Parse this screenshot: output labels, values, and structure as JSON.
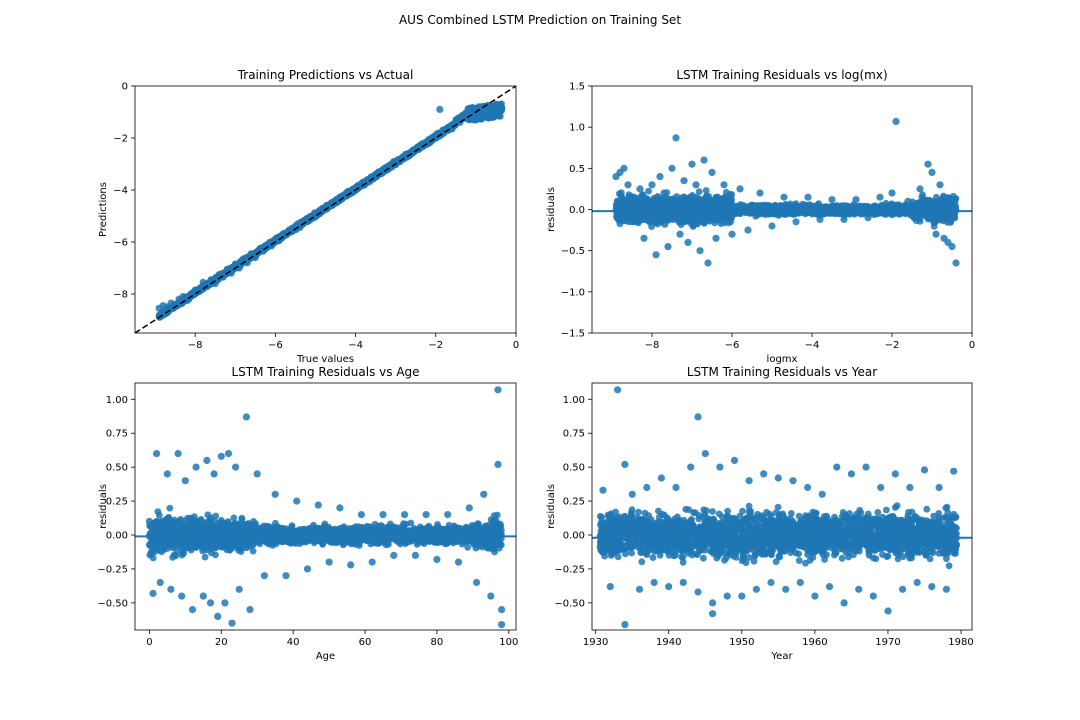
{
  "figure_title": "AUS Combined LSTM Prediction on Training Set",
  "colors": {
    "points": "#1f77b4",
    "hline": "#1f77b4",
    "diagonal": "#000000"
  },
  "chart_data": [
    {
      "id": "pred-vs-actual",
      "type": "scatter",
      "title": "Training Predictions vs Actual",
      "xlabel": "True values",
      "ylabel": "Predictions",
      "xlim": [
        -9.5,
        0
      ],
      "ylim": [
        -9.5,
        0
      ],
      "xticks": [
        -8,
        -6,
        -4,
        -2,
        0
      ],
      "yticks": [
        -8,
        -6,
        -4,
        -2,
        0
      ],
      "tick_labels_x": [
        "−8",
        "−6",
        "−4",
        "−2",
        "0"
      ],
      "tick_labels_y": [
        "−8",
        "−6",
        "−4",
        "−2",
        "0"
      ],
      "reference_line": "y = x (dashed, black)",
      "points": [
        [
          -8.9,
          -8.55
        ],
        [
          -8.8,
          -8.45
        ],
        [
          -8.7,
          -8.5
        ],
        [
          -8.6,
          -8.35
        ],
        [
          -8.5,
          -8.4
        ],
        [
          -8.4,
          -8.2
        ],
        [
          -8.3,
          -8.1
        ],
        [
          -8.2,
          -8.25
        ],
        [
          -8.1,
          -8.0
        ],
        [
          -8.0,
          -7.85
        ],
        [
          -7.9,
          -7.9
        ],
        [
          -7.8,
          -7.55
        ],
        [
          -7.7,
          -7.7
        ],
        [
          -7.6,
          -7.45
        ],
        [
          -7.5,
          -7.6
        ],
        [
          -7.4,
          -7.25
        ],
        [
          -7.3,
          -7.35
        ],
        [
          -7.2,
          -7.05
        ],
        [
          -7.1,
          -7.2
        ],
        [
          -7.0,
          -6.85
        ],
        [
          -6.9,
          -7.0
        ],
        [
          -6.8,
          -6.65
        ],
        [
          -6.7,
          -6.8
        ],
        [
          -6.6,
          -6.45
        ],
        [
          -6.5,
          -6.6
        ],
        [
          -6.4,
          -6.3
        ],
        [
          -6.3,
          -6.35
        ],
        [
          -6.2,
          -6.1
        ],
        [
          -6.1,
          -6.15
        ],
        [
          -6.0,
          -5.95
        ],
        [
          -5.8,
          -5.75
        ],
        [
          -5.6,
          -5.5
        ],
        [
          -5.4,
          -5.35
        ],
        [
          -5.2,
          -5.1
        ],
        [
          -5.0,
          -4.95
        ],
        [
          -4.8,
          -4.75
        ],
        [
          -4.6,
          -4.55
        ],
        [
          -4.4,
          -4.35
        ],
        [
          -4.2,
          -4.15
        ],
        [
          -4.0,
          -3.95
        ],
        [
          -3.8,
          -3.75
        ],
        [
          -3.6,
          -3.55
        ],
        [
          -3.4,
          -3.35
        ],
        [
          -3.2,
          -3.15
        ],
        [
          -3.0,
          -2.95
        ],
        [
          -2.8,
          -2.8
        ],
        [
          -2.6,
          -2.55
        ],
        [
          -2.4,
          -2.4
        ],
        [
          -2.2,
          -2.2
        ],
        [
          -2.0,
          -2.0
        ],
        [
          -1.9,
          -0.9
        ],
        [
          -1.8,
          -1.8
        ],
        [
          -1.6,
          -1.65
        ],
        [
          -1.4,
          -1.4
        ],
        [
          -1.3,
          -1.25
        ],
        [
          -1.2,
          -1.1
        ],
        [
          -1.1,
          -1.05
        ],
        [
          -1.0,
          -0.95
        ],
        [
          -0.9,
          -0.85
        ],
        [
          -0.8,
          -0.8
        ],
        [
          -0.7,
          -0.75
        ],
        [
          -0.6,
          -0.8
        ],
        [
          -0.5,
          -0.7
        ],
        [
          -0.4,
          -0.75
        ]
      ]
    },
    {
      "id": "resid-vs-logmx",
      "type": "scatter",
      "title": "LSTM Training Residuals vs log(mx)",
      "xlabel": "logmx",
      "ylabel": "residuals",
      "xlim": [
        -9.5,
        0
      ],
      "ylim": [
        -1.5,
        1.5
      ],
      "xticks": [
        -8,
        -6,
        -4,
        -2,
        0
      ],
      "yticks": [
        -1.5,
        -1.0,
        -0.5,
        0.0,
        0.5,
        1.0,
        1.5
      ],
      "tick_labels_x": [
        "−8",
        "−6",
        "−4",
        "−2",
        "0"
      ],
      "tick_labels_y": [
        "−1.5",
        "−1.0",
        "−0.5",
        "0.0",
        "0.5",
        "1.0",
        "1.5"
      ],
      "hline": -0.02,
      "points": [
        [
          -8.9,
          0.4
        ],
        [
          -8.8,
          0.45
        ],
        [
          -8.7,
          0.5
        ],
        [
          -8.6,
          0.3
        ],
        [
          -8.5,
          -0.15
        ],
        [
          -8.3,
          0.25
        ],
        [
          -8.2,
          -0.35
        ],
        [
          -8.0,
          0.3
        ],
        [
          -7.9,
          -0.55
        ],
        [
          -7.8,
          0.4
        ],
        [
          -7.7,
          0.2
        ],
        [
          -7.6,
          -0.45
        ],
        [
          -7.5,
          0.5
        ],
        [
          -7.4,
          0.87
        ],
        [
          -7.3,
          -0.3
        ],
        [
          -7.2,
          0.35
        ],
        [
          -7.1,
          -0.4
        ],
        [
          -7.0,
          0.55
        ],
        [
          -6.9,
          0.3
        ],
        [
          -6.8,
          -0.5
        ],
        [
          -6.7,
          0.6
        ],
        [
          -6.6,
          -0.65
        ],
        [
          -6.5,
          0.45
        ],
        [
          -6.4,
          -0.35
        ],
        [
          -6.2,
          0.3
        ],
        [
          -6.0,
          -0.3
        ],
        [
          -5.8,
          0.25
        ],
        [
          -5.6,
          -0.25
        ],
        [
          -5.3,
          0.2
        ],
        [
          -5.0,
          -0.2
        ],
        [
          -4.7,
          0.15
        ],
        [
          -4.4,
          -0.15
        ],
        [
          -4.1,
          0.15
        ],
        [
          -3.8,
          -0.12
        ],
        [
          -3.5,
          0.12
        ],
        [
          -3.2,
          -0.12
        ],
        [
          -2.9,
          0.12
        ],
        [
          -2.6,
          -0.1
        ],
        [
          -2.3,
          0.15
        ],
        [
          -2.0,
          0.2
        ],
        [
          -1.9,
          1.07
        ],
        [
          -1.6,
          0.1
        ],
        [
          -1.3,
          0.25
        ],
        [
          -1.1,
          0.55
        ],
        [
          -1.0,
          0.45
        ],
        [
          -0.9,
          -0.3
        ],
        [
          -0.8,
          0.3
        ],
        [
          -0.7,
          -0.35
        ],
        [
          -0.6,
          -0.4
        ],
        [
          -0.5,
          -0.45
        ],
        [
          -0.4,
          -0.65
        ]
      ]
    },
    {
      "id": "resid-vs-age",
      "type": "scatter",
      "title": "LSTM Training  Residuals vs Age",
      "xlabel": "Age",
      "ylabel": "residuals",
      "xlim": [
        -4,
        102
      ],
      "ylim": [
        -0.7,
        1.12
      ],
      "xticks": [
        0,
        20,
        40,
        60,
        80,
        100
      ],
      "yticks": [
        -0.5,
        -0.25,
        0.0,
        0.25,
        0.5,
        0.75,
        1.0
      ],
      "tick_labels_x": [
        "0",
        "20",
        "40",
        "60",
        "80",
        "100"
      ],
      "tick_labels_y": [
        "−0.50",
        "−0.25",
        "0.00",
        "0.25",
        "0.50",
        "0.75",
        "1.00"
      ],
      "hline": -0.01,
      "points": [
        [
          0,
          0.1
        ],
        [
          1,
          -0.43
        ],
        [
          2,
          0.6
        ],
        [
          3,
          -0.35
        ],
        [
          5,
          0.45
        ],
        [
          6,
          -0.4
        ],
        [
          8,
          0.6
        ],
        [
          9,
          -0.45
        ],
        [
          10,
          0.4
        ],
        [
          12,
          -0.55
        ],
        [
          13,
          0.5
        ],
        [
          15,
          -0.45
        ],
        [
          16,
          0.55
        ],
        [
          17,
          -0.5
        ],
        [
          18,
          0.45
        ],
        [
          19,
          -0.6
        ],
        [
          20,
          0.58
        ],
        [
          21,
          -0.5
        ],
        [
          22,
          0.6
        ],
        [
          23,
          -0.65
        ],
        [
          24,
          0.5
        ],
        [
          25,
          -0.4
        ],
        [
          27,
          0.87
        ],
        [
          28,
          -0.55
        ],
        [
          30,
          0.45
        ],
        [
          32,
          -0.3
        ],
        [
          35,
          0.3
        ],
        [
          38,
          -0.3
        ],
        [
          41,
          0.25
        ],
        [
          44,
          -0.25
        ],
        [
          47,
          0.22
        ],
        [
          50,
          -0.2
        ],
        [
          53,
          0.2
        ],
        [
          56,
          -0.22
        ],
        [
          59,
          0.15
        ],
        [
          62,
          -0.2
        ],
        [
          65,
          0.15
        ],
        [
          68,
          -0.15
        ],
        [
          71,
          0.15
        ],
        [
          74,
          -0.15
        ],
        [
          77,
          0.15
        ],
        [
          80,
          -0.18
        ],
        [
          83,
          0.15
        ],
        [
          86,
          -0.2
        ],
        [
          89,
          0.2
        ],
        [
          91,
          -0.35
        ],
        [
          93,
          0.3
        ],
        [
          95,
          -0.45
        ],
        [
          97,
          1.07
        ],
        [
          97,
          0.52
        ],
        [
          98,
          -0.55
        ],
        [
          98,
          -0.66
        ]
      ]
    },
    {
      "id": "resid-vs-year",
      "type": "scatter",
      "title": "LSTM Training  Residuals vs Year",
      "xlabel": "Year",
      "ylabel": "residuals",
      "xlim": [
        1929.5,
        1981.5
      ],
      "ylim": [
        -0.7,
        1.12
      ],
      "xticks": [
        1930,
        1940,
        1950,
        1960,
        1970,
        1980
      ],
      "yticks": [
        -0.5,
        -0.25,
        0.0,
        0.25,
        0.5,
        0.75,
        1.0
      ],
      "tick_labels_x": [
        "1930",
        "1940",
        "1950",
        "1960",
        "1970",
        "1980"
      ],
      "tick_labels_y": [
        "−0.50",
        "−0.25",
        "0.00",
        "0.25",
        "0.50",
        "0.75",
        "1.00"
      ],
      "hline": -0.02,
      "points": [
        [
          1931,
          0.33
        ],
        [
          1932,
          -0.38
        ],
        [
          1933,
          1.07
        ],
        [
          1934,
          0.52
        ],
        [
          1934,
          -0.66
        ],
        [
          1935,
          0.3
        ],
        [
          1936,
          -0.4
        ],
        [
          1937,
          0.35
        ],
        [
          1938,
          -0.35
        ],
        [
          1939,
          0.42
        ],
        [
          1940,
          -0.38
        ],
        [
          1941,
          0.35
        ],
        [
          1942,
          -0.35
        ],
        [
          1943,
          0.5
        ],
        [
          1944,
          0.87
        ],
        [
          1944,
          -0.42
        ],
        [
          1945,
          0.6
        ],
        [
          1946,
          -0.5
        ],
        [
          1946,
          -0.58
        ],
        [
          1947,
          0.5
        ],
        [
          1948,
          -0.45
        ],
        [
          1949,
          0.55
        ],
        [
          1950,
          -0.45
        ],
        [
          1951,
          0.4
        ],
        [
          1952,
          -0.4
        ],
        [
          1953,
          0.45
        ],
        [
          1954,
          -0.35
        ],
        [
          1955,
          0.42
        ],
        [
          1956,
          -0.4
        ],
        [
          1957,
          0.4
        ],
        [
          1958,
          -0.35
        ],
        [
          1959,
          0.35
        ],
        [
          1960,
          -0.45
        ],
        [
          1961,
          0.3
        ],
        [
          1962,
          -0.38
        ],
        [
          1963,
          0.5
        ],
        [
          1964,
          -0.5
        ],
        [
          1965,
          0.45
        ],
        [
          1966,
          -0.4
        ],
        [
          1967,
          0.5
        ],
        [
          1968,
          -0.45
        ],
        [
          1969,
          0.35
        ],
        [
          1970,
          -0.56
        ],
        [
          1971,
          0.45
        ],
        [
          1972,
          -0.4
        ],
        [
          1973,
          0.35
        ],
        [
          1974,
          -0.35
        ],
        [
          1975,
          0.48
        ],
        [
          1976,
          -0.38
        ],
        [
          1977,
          0.35
        ],
        [
          1978,
          -0.4
        ],
        [
          1979,
          0.47
        ]
      ]
    }
  ]
}
